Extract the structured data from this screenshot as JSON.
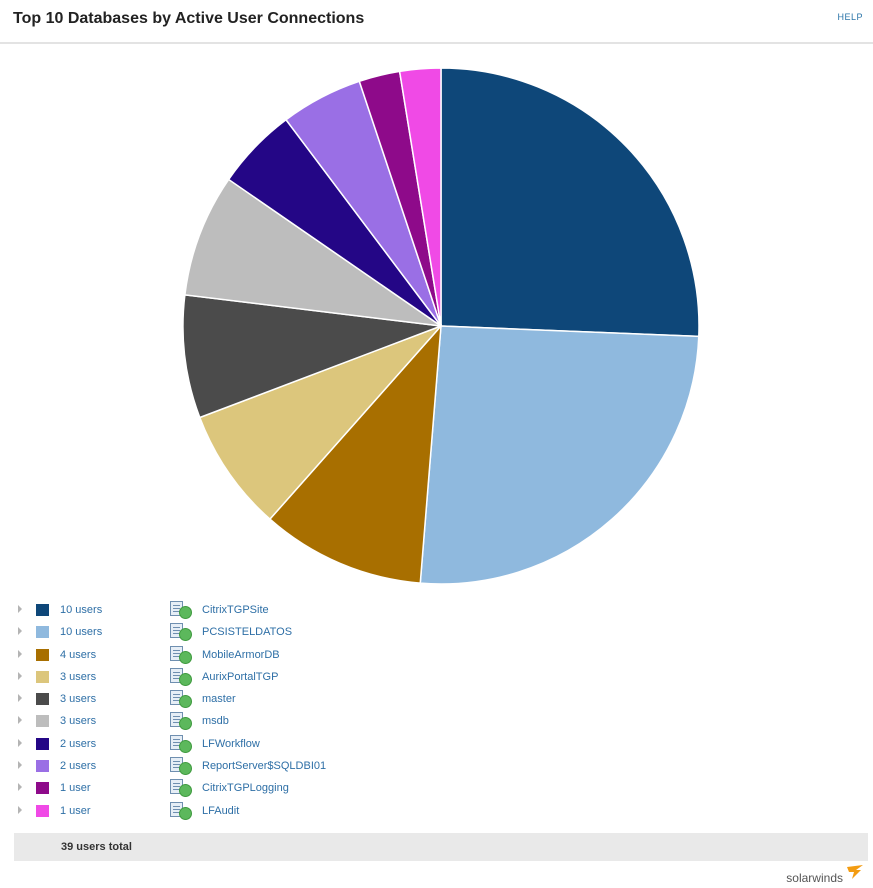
{
  "header": {
    "title": "Top 10 Databases by Active User Connections",
    "help_label": "HELP"
  },
  "chart_data": {
    "type": "pie",
    "title": "Top 10 Databases by Active User Connections",
    "slices": [
      {
        "label": "CitrixTGPSite",
        "value": 10,
        "users_label": "10 users",
        "color": "#0e4779"
      },
      {
        "label": "PCSISTELDATOS",
        "value": 10,
        "users_label": "10 users",
        "color": "#8fb9de"
      },
      {
        "label": "MobileArmorDB",
        "value": 4,
        "users_label": "4 users",
        "color": "#a86f00"
      },
      {
        "label": "AurixPortalTGP",
        "value": 3,
        "users_label": "3 users",
        "color": "#dcc67c"
      },
      {
        "label": "master",
        "value": 3,
        "users_label": "3 users",
        "color": "#4b4b4b"
      },
      {
        "label": "msdb",
        "value": 3,
        "users_label": "3 users",
        "color": "#bdbdbd"
      },
      {
        "label": "LFWorkflow",
        "value": 2,
        "users_label": "2 users",
        "color": "#240686"
      },
      {
        "label": "ReportServer$SQLDBI01",
        "value": 2,
        "users_label": "2 users",
        "color": "#9a6fe5"
      },
      {
        "label": "CitrixTGPLogging",
        "value": 1,
        "users_label": "1 user",
        "color": "#8e0a8a"
      },
      {
        "label": "LFAudit",
        "value": 1,
        "users_label": "1 user",
        "color": "#f04ae6"
      }
    ]
  },
  "footer": {
    "total_label": "39 users total"
  },
  "brand": {
    "name": "solarwinds",
    "mark_color": "#f39c12"
  }
}
